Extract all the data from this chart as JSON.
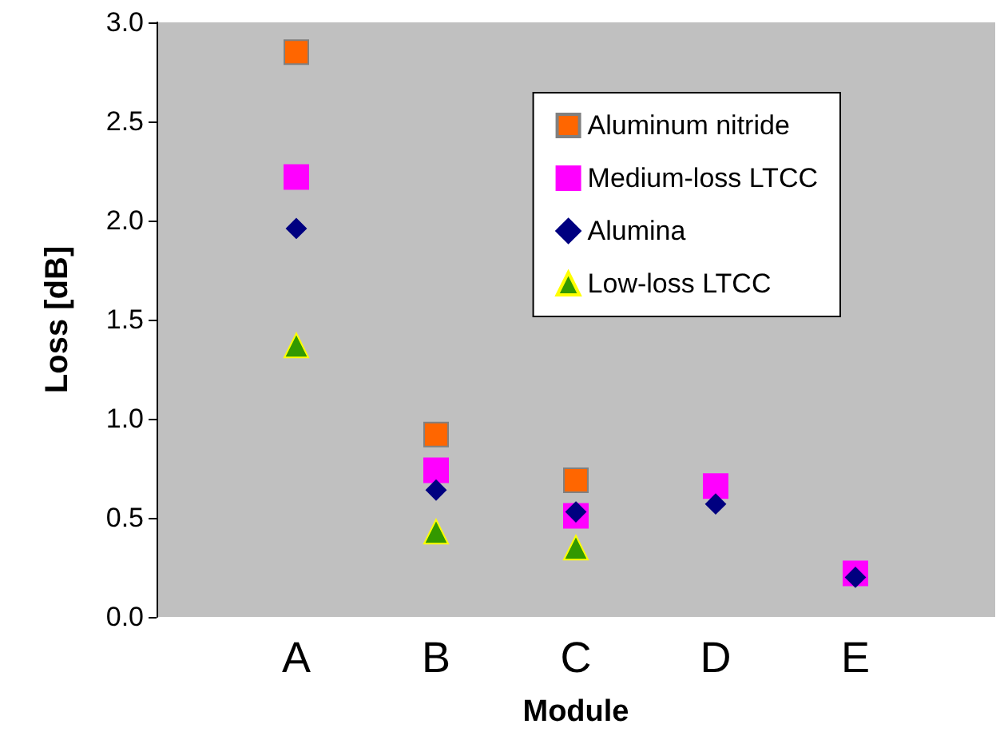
{
  "chart_data": {
    "type": "scatter",
    "xlabel": "Module",
    "ylabel": "Loss [dB]",
    "categories": [
      null,
      "A",
      "B",
      "C",
      "D",
      "E",
      null
    ],
    "series": [
      {
        "name": "Aluminum nitride",
        "color": "#ff6600",
        "marker": "square",
        "values": [
          null,
          2.85,
          0.92,
          0.69,
          null,
          null,
          null
        ]
      },
      {
        "name": "Medium-loss LTCC",
        "color": "#ff00ff",
        "marker": "square",
        "values": [
          null,
          2.22,
          0.74,
          0.51,
          0.66,
          0.22,
          null
        ]
      },
      {
        "name": "Alumina",
        "color": "#000080",
        "marker": "diamond",
        "values": [
          null,
          1.96,
          0.64,
          0.53,
          0.57,
          0.2,
          null
        ]
      },
      {
        "name": "Low-loss LTCC",
        "color": "#339900",
        "marker": "triangle",
        "values": [
          null,
          1.37,
          0.43,
          0.35,
          null,
          null,
          null
        ]
      }
    ],
    "ylim": [
      0,
      3
    ],
    "yticks": [
      {
        "value": 0,
        "label": "0.0"
      },
      {
        "value": 0.5,
        "label": "0.5"
      },
      {
        "value": 1,
        "label": "1.0"
      },
      {
        "value": 1.5,
        "label": "1.5"
      },
      {
        "value": 2,
        "label": "2.0"
      },
      {
        "value": 2.5,
        "label": "2.5"
      },
      {
        "value": 3,
        "label": "3.0"
      }
    ],
    "grid": false,
    "legend": "top right"
  }
}
